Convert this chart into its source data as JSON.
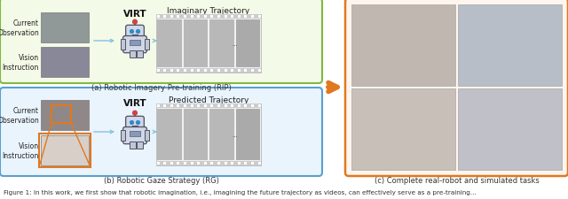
{
  "fig_width": 6.4,
  "fig_height": 2.26,
  "dpi": 100,
  "panel_a_label": "(a) Robotic Imagery Pre-training (RIP)",
  "panel_b_label": "(b) Robotic Gaze Strategy (RG)",
  "panel_c_label": "(c) Complete real-robot and simulated tasks",
  "virt_label": "VIRT",
  "traj_a_label": "Imaginary Trajectory",
  "traj_b_label": "Predicted Trajectory",
  "text_current_obs": "Current\nObservation",
  "text_vision_inst": "Vision\nInstruction",
  "box_a_color": "#82b840",
  "box_b_color": "#5aa0d0",
  "box_c_color": "#e07820",
  "arrow_color": "#88c0e0",
  "bg_color": "#ffffff",
  "label_fontsize": 6.0,
  "caption_fontsize": 5.2,
  "panel_a_bg": "#f3fae8",
  "panel_b_bg": "#eaf4fc",
  "panel_c_bg": "#fef6ee"
}
